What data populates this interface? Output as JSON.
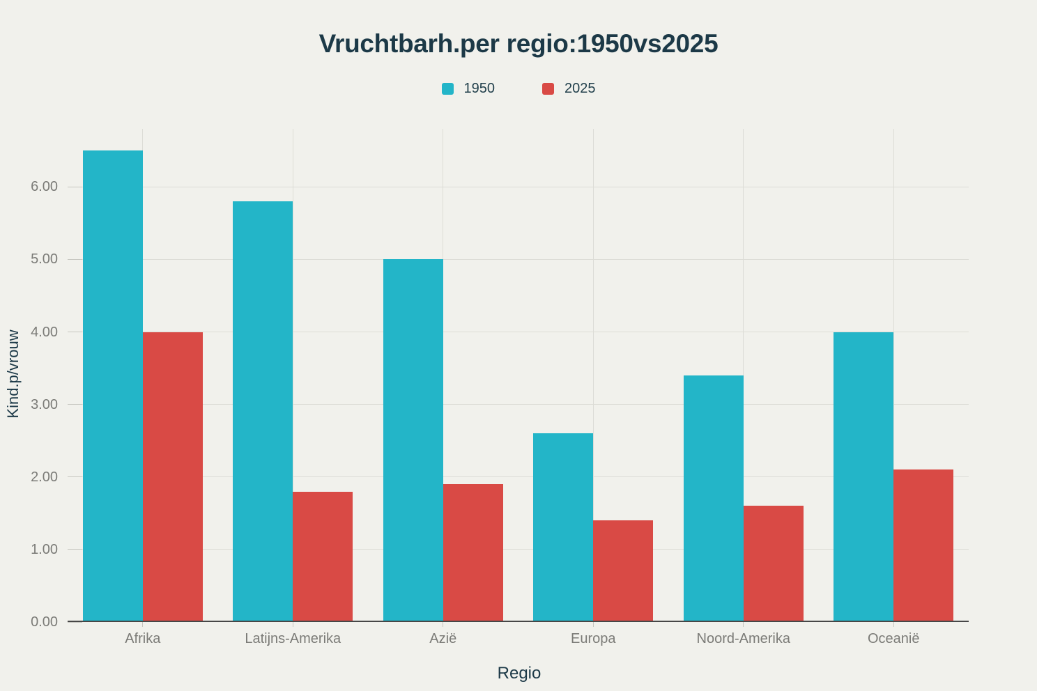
{
  "chart_data": {
    "type": "bar",
    "title": "Vruchtbarh.per regio:1950vs2025",
    "categories": [
      "Afrika",
      "Latijns-Amerika",
      "Azië",
      "Europa",
      "Noord-Amerika",
      "Oceanië"
    ],
    "series": [
      {
        "name": "1950",
        "color": "#23b5c8",
        "values": [
          6.5,
          5.8,
          5.0,
          2.6,
          3.4,
          4.0
        ]
      },
      {
        "name": "2025",
        "color": "#d94a45",
        "values": [
          4.0,
          1.8,
          1.9,
          1.4,
          1.6,
          2.1
        ]
      }
    ],
    "xlabel": "Regio",
    "ylabel": "Kind.p/vrouw",
    "ylim": [
      0,
      6.8
    ],
    "yticks": [
      0,
      1,
      2,
      3,
      4,
      5,
      6
    ],
    "ytick_labels": [
      "0.00",
      "1.00",
      "2.00",
      "3.00",
      "4.00",
      "5.00",
      "6.00"
    ],
    "grid": true,
    "legend_position": "top"
  },
  "colors": {
    "background": "#f1f1ec",
    "title_text": "#1c3947",
    "axis_title_text": "#1c3947",
    "tick_text": "#7b7b77",
    "legend_text": "#22404c",
    "gridline": "#dcdcd6",
    "tick_mark": "#c6c6c0",
    "axis_line": "#474747"
  }
}
